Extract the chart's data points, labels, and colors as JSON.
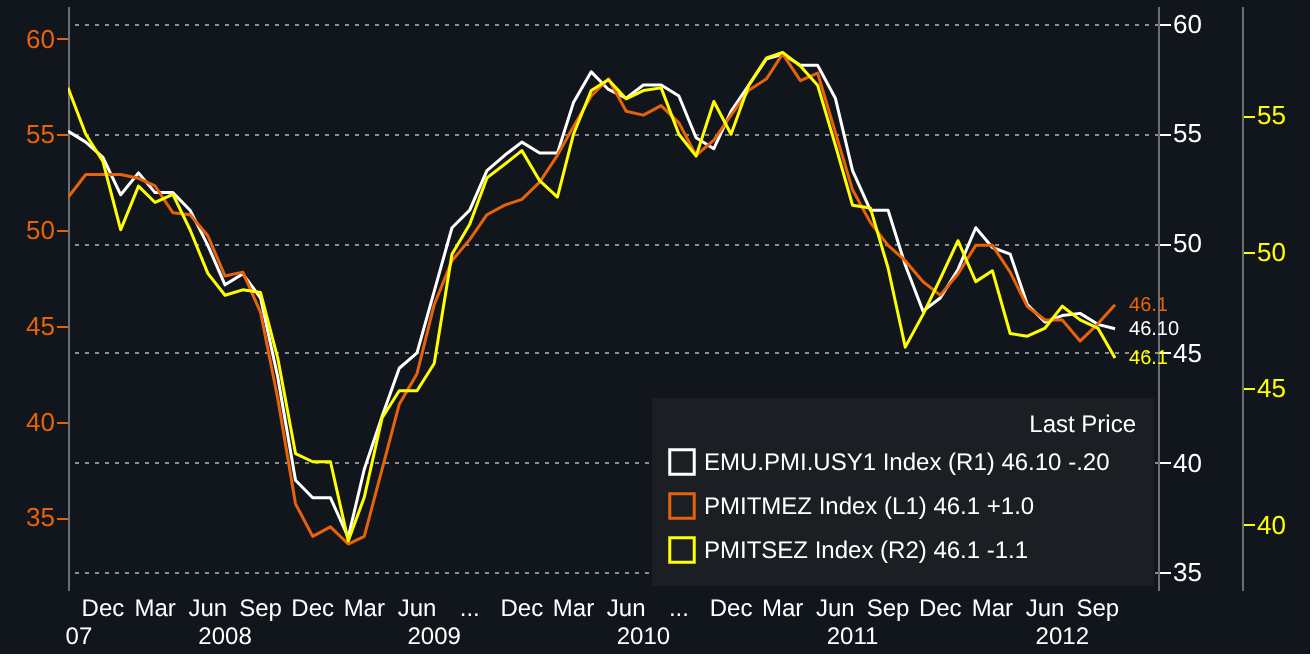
{
  "chart_data": {
    "type": "line",
    "legend_title": "Last Price",
    "legend": "bottom right",
    "grid": true,
    "x": [
      "2007-10-01",
      "2007-11-01",
      "2007-12-01",
      "2008-01-01",
      "2008-02-01",
      "2008-03-01",
      "2008-04-01",
      "2008-05-01",
      "2008-06-01",
      "2008-07-01",
      "2008-08-01",
      "2008-09-01",
      "2008-10-01",
      "2008-11-01",
      "2008-12-01",
      "2009-01-01",
      "2009-02-01",
      "2009-03-01",
      "2009-04-01",
      "2009-05-01",
      "2009-06-01",
      "2009-07-01",
      "2009-08-01",
      "2009-09-01",
      "2009-10-01",
      "2009-11-01",
      "2009-12-01",
      "2010-01-01",
      "2010-02-01",
      "2010-03-01",
      "2010-04-01",
      "2010-05-01",
      "2010-06-01",
      "2010-07-01",
      "2010-08-01",
      "2010-09-01",
      "2010-10-01",
      "2010-11-01",
      "2010-12-01",
      "2011-01-01",
      "2011-02-01",
      "2011-03-01",
      "2011-04-01",
      "2011-05-01",
      "2011-06-01",
      "2011-07-01",
      "2011-08-01",
      "2011-09-01",
      "2011-10-01",
      "2011-11-01",
      "2011-12-01",
      "2012-01-01",
      "2012-02-01",
      "2012-03-01",
      "2012-04-01",
      "2012-05-01",
      "2012-06-01",
      "2012-07-01",
      "2012-08-01",
      "2012-09-01",
      "2012-10-01"
    ],
    "series": [
      {
        "name": "EMU.PMI.USY1 Index (R1)   46.10   -.20",
        "color": "#ffffff",
        "axis": "y2",
        "value_labels": [
          null,
          null,
          null,
          null,
          null,
          null,
          null,
          null,
          null,
          null,
          null,
          null,
          null,
          null,
          null,
          null,
          null,
          null,
          null,
          null,
          null,
          null,
          null,
          null,
          null,
          null,
          null,
          null,
          null,
          null,
          null,
          null,
          null,
          null,
          null,
          null,
          null,
          null,
          null,
          null,
          null,
          null,
          null,
          null,
          null,
          null,
          null,
          null,
          null,
          null,
          null,
          null,
          null,
          null,
          null,
          null,
          null,
          null,
          null,
          null,
          "46.10"
        ],
        "values": [
          55.1,
          54.6,
          53.9,
          52.2,
          53.2,
          52.3,
          52.3,
          51.5,
          49.9,
          48.1,
          48.6,
          47.5,
          43.9,
          39.2,
          38.4,
          38.4,
          36.6,
          39.7,
          42.1,
          44.3,
          45.0,
          47.8,
          50.7,
          51.5,
          53.3,
          54.0,
          54.6,
          54.1,
          54.1,
          56.4,
          57.8,
          57.0,
          56.6,
          57.2,
          57.2,
          56.7,
          54.8,
          54.3,
          56.0,
          57.2,
          58.4,
          58.6,
          58.1,
          58.1,
          56.6,
          53.3,
          51.5,
          51.5,
          49.0,
          46.9,
          47.5,
          48.8,
          50.7,
          49.8,
          49.5,
          47.2,
          46.4,
          46.7,
          46.8,
          46.3,
          46.1
        ]
      },
      {
        "name": "PMITMEZ Index (L1)   46.1   +1.0",
        "color": "#e8620a",
        "axis": "y",
        "value_labels": [
          null,
          null,
          null,
          null,
          null,
          null,
          null,
          null,
          null,
          null,
          null,
          null,
          null,
          null,
          null,
          null,
          null,
          null,
          null,
          null,
          null,
          null,
          null,
          null,
          null,
          null,
          null,
          null,
          null,
          null,
          null,
          null,
          null,
          null,
          null,
          null,
          null,
          null,
          null,
          null,
          null,
          null,
          null,
          null,
          null,
          null,
          null,
          null,
          null,
          null,
          null,
          null,
          null,
          null,
          null,
          null,
          null,
          null,
          null,
          null,
          "46.1"
        ],
        "values": [
          51.7,
          52.9,
          52.9,
          52.9,
          52.7,
          52.3,
          50.9,
          50.8,
          49.7,
          47.6,
          47.8,
          45.7,
          41.2,
          35.7,
          34.0,
          34.5,
          33.6,
          34.0,
          37.5,
          40.9,
          42.5,
          46.1,
          48.4,
          49.5,
          50.8,
          51.3,
          51.6,
          52.5,
          53.9,
          55.4,
          57.0,
          57.9,
          56.2,
          56.0,
          56.5,
          55.6,
          53.9,
          54.7,
          56.0,
          57.3,
          57.9,
          59.2,
          57.8,
          58.2,
          55.1,
          52.1,
          50.4,
          49.2,
          48.4,
          47.3,
          46.6,
          47.7,
          49.2,
          49.2,
          47.8,
          46.0,
          45.3,
          45.3,
          44.2,
          45.1,
          46.1
        ]
      },
      {
        "name": "PMITSEZ Index (R2)   46.1   -1.1",
        "color": "#ffff00",
        "axis": "y3",
        "value_labels": [
          null,
          null,
          null,
          null,
          null,
          null,
          null,
          null,
          null,
          null,
          null,
          null,
          null,
          null,
          null,
          null,
          null,
          null,
          null,
          null,
          null,
          null,
          null,
          null,
          null,
          null,
          null,
          null,
          null,
          null,
          null,
          null,
          null,
          null,
          null,
          null,
          null,
          null,
          null,
          null,
          null,
          null,
          null,
          null,
          null,
          null,
          null,
          null,
          null,
          null,
          null,
          null,
          null,
          null,
          null,
          null,
          null,
          null,
          null,
          null,
          "46.1"
        ],
        "values": [
          56.0,
          54.3,
          53.3,
          50.8,
          52.4,
          51.8,
          52.1,
          50.8,
          49.2,
          48.4,
          48.6,
          48.5,
          46.1,
          42.6,
          42.3,
          42.3,
          39.4,
          41.0,
          43.9,
          44.9,
          44.9,
          45.9,
          49.9,
          51.0,
          52.7,
          53.2,
          53.7,
          52.6,
          52.0,
          54.3,
          55.9,
          56.3,
          55.6,
          55.9,
          56.0,
          54.3,
          53.5,
          55.5,
          54.3,
          56.1,
          57.1,
          57.3,
          56.8,
          56.1,
          53.9,
          51.7,
          51.6,
          49.4,
          46.5,
          47.7,
          49.0,
          50.4,
          48.9,
          49.3,
          47.0,
          46.9,
          47.2,
          48.0,
          47.5,
          47.2,
          46.1
        ]
      }
    ],
    "xlim": [
      "2007-10-01",
      "2012-12-15"
    ],
    "x2lim": [
      "2007-10-01",
      "2012-12-15"
    ],
    "xticks": [
      {
        "value": "2007-12-01",
        "label": "Dec"
      },
      {
        "value": "2008-03-01",
        "label": "Mar"
      },
      {
        "value": "2008-06-01",
        "label": "Jun"
      },
      {
        "value": "2008-09-01",
        "label": "Sep"
      },
      {
        "value": "2008-12-01",
        "label": "Dec"
      },
      {
        "value": "2009-03-01",
        "label": "Mar"
      },
      {
        "value": "2009-06-01",
        "label": "Jun"
      },
      {
        "value": "2009-09-01",
        "label": "..."
      },
      {
        "value": "2009-12-01",
        "label": "Dec"
      },
      {
        "value": "2010-03-01",
        "label": "Mar"
      },
      {
        "value": "2010-06-01",
        "label": "Jun"
      },
      {
        "value": "2010-09-01",
        "label": "..."
      },
      {
        "value": "2010-12-01",
        "label": "Dec"
      },
      {
        "value": "2011-03-01",
        "label": "Mar"
      },
      {
        "value": "2011-06-01",
        "label": "Jun"
      },
      {
        "value": "2011-09-01",
        "label": "Sep"
      },
      {
        "value": "2011-12-01",
        "label": "Dec"
      },
      {
        "value": "2012-03-01",
        "label": "Mar"
      },
      {
        "value": "2012-06-01",
        "label": "Jun"
      },
      {
        "value": "2012-09-01",
        "label": "Sep"
      }
    ],
    "x2ticks": [
      {
        "value": "2007-10-20",
        "label": "07"
      },
      {
        "value": "2008-07-01",
        "label": "2008"
      },
      {
        "value": "2009-07-01",
        "label": "2009"
      },
      {
        "value": "2010-07-01",
        "label": "2010"
      },
      {
        "value": "2011-07-01",
        "label": "2011"
      },
      {
        "value": "2012-07-01",
        "label": "2012"
      }
    ],
    "ylim": [
      31.2,
      61.7
    ],
    "yticks": [
      35,
      40,
      45,
      50,
      55,
      60
    ],
    "y2lim": [
      34.2,
      60.8
    ],
    "y2ticks": [
      35,
      40,
      45,
      50,
      55,
      60
    ],
    "y3lim": [
      37.6,
      59.0
    ],
    "y3ticks": [
      40,
      45,
      50,
      55
    ]
  }
}
